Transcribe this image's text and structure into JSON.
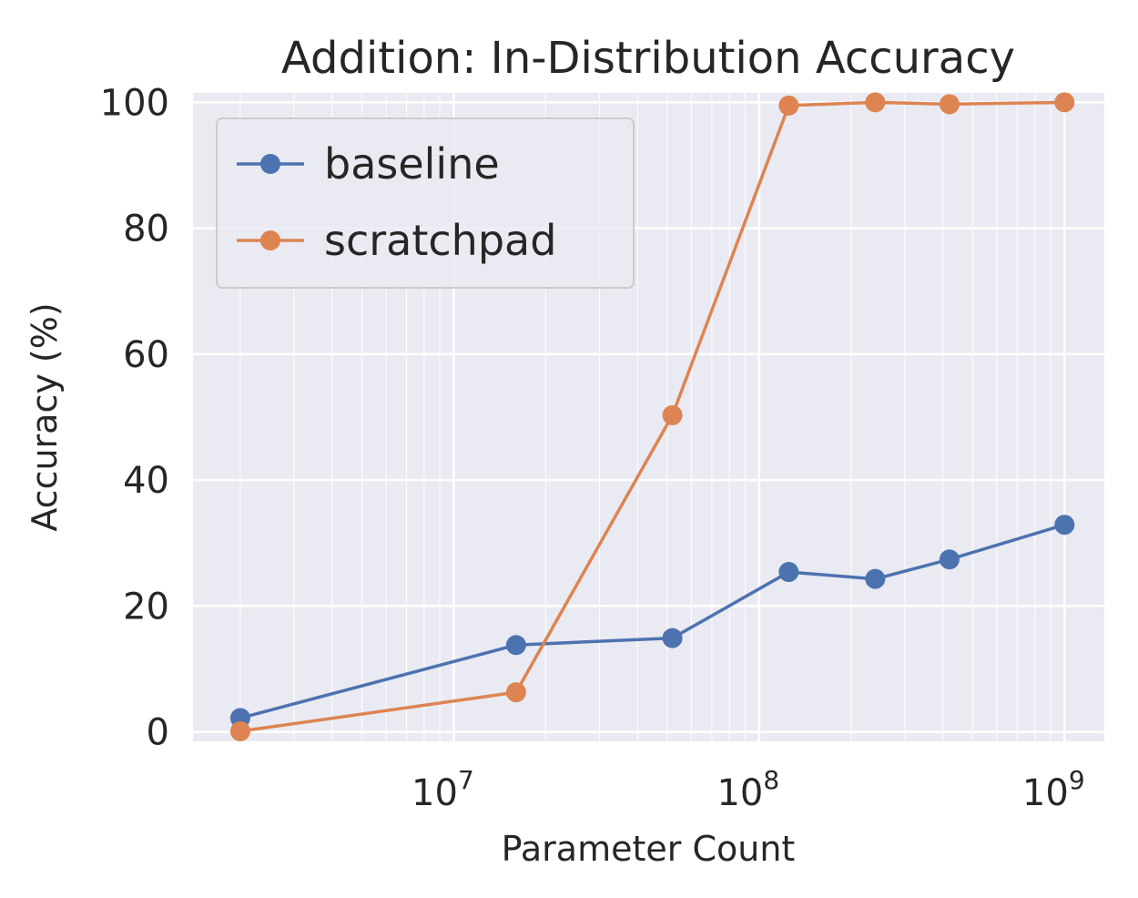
{
  "chart_data": {
    "type": "line",
    "title": "Addition: In-Distribution Accuracy",
    "xlabel": "Parameter Count",
    "ylabel": "Accuracy (%)",
    "x_scale": "log",
    "xlim": [
      1400000,
      1350000000
    ],
    "ylim": [
      -1.5,
      101.5
    ],
    "x_ticks": [
      {
        "value": 10000000,
        "base": "10",
        "exp": "7"
      },
      {
        "value": 100000000,
        "base": "10",
        "exp": "8"
      },
      {
        "value": 1000000000,
        "base": "10",
        "exp": "9"
      }
    ],
    "y_ticks": [
      0,
      20,
      40,
      60,
      80,
      100
    ],
    "grid": true,
    "legend_position": "upper-left",
    "series": [
      {
        "name": "baseline",
        "color": "#4c72b0",
        "points": [
          {
            "x": 2000000,
            "y": 2.2
          },
          {
            "x": 16000000,
            "y": 13.8
          },
          {
            "x": 52000000,
            "y": 14.9
          },
          {
            "x": 125000000,
            "y": 25.4
          },
          {
            "x": 240000000,
            "y": 24.3
          },
          {
            "x": 420000000,
            "y": 27.4
          },
          {
            "x": 1000000000,
            "y": 32.9
          }
        ]
      },
      {
        "name": "scratchpad",
        "color": "#dd8452",
        "points": [
          {
            "x": 2000000,
            "y": 0.1
          },
          {
            "x": 16000000,
            "y": 6.3
          },
          {
            "x": 52000000,
            "y": 50.3
          },
          {
            "x": 125000000,
            "y": 99.5
          },
          {
            "x": 240000000,
            "y": 100.0
          },
          {
            "x": 420000000,
            "y": 99.7
          },
          {
            "x": 1000000000,
            "y": 100.0
          }
        ]
      }
    ]
  }
}
